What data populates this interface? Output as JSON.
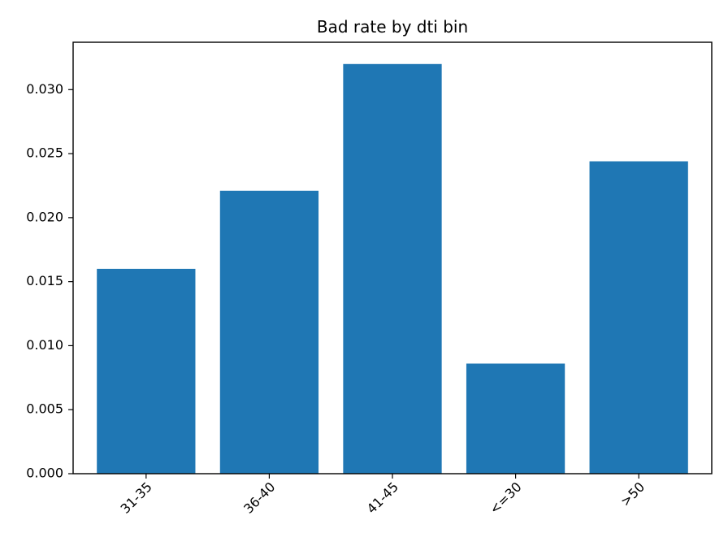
{
  "chart_data": {
    "type": "bar",
    "title": "Bad rate by dti bin",
    "xlabel": "",
    "ylabel": "",
    "categories": [
      "31-35",
      "36-40",
      "41-45",
      "<=30",
      ">50"
    ],
    "values": [
      0.016,
      0.0221,
      0.032,
      0.0086,
      0.0244
    ],
    "ylim": [
      0,
      0.0337
    ],
    "yticks": [
      0.0,
      0.005,
      0.01,
      0.015,
      0.02,
      0.025,
      0.03
    ],
    "ytick_labels": [
      "0.000",
      "0.005",
      "0.010",
      "0.015",
      "0.020",
      "0.025",
      "0.030"
    ],
    "bar_color": "#1f77b4",
    "xtick_rotation_deg": 45,
    "grid": false,
    "legend": "none"
  }
}
